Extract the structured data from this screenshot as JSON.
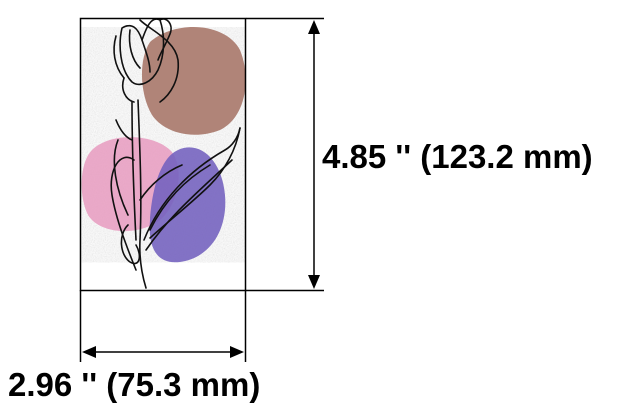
{
  "figure": {
    "height_dimension": "4.85 '' (123.2 mm)",
    "width_dimension": "2.96 '' (75.3 mm)"
  },
  "colors": {
    "brown_blob": "#b08478",
    "pink_blob": "#e79bbf",
    "purple_blob": "#7563c0",
    "frame": "#000000",
    "drawing_stroke": "#111111"
  },
  "icons": {
    "artwork": "tulip-line-art-icon"
  }
}
